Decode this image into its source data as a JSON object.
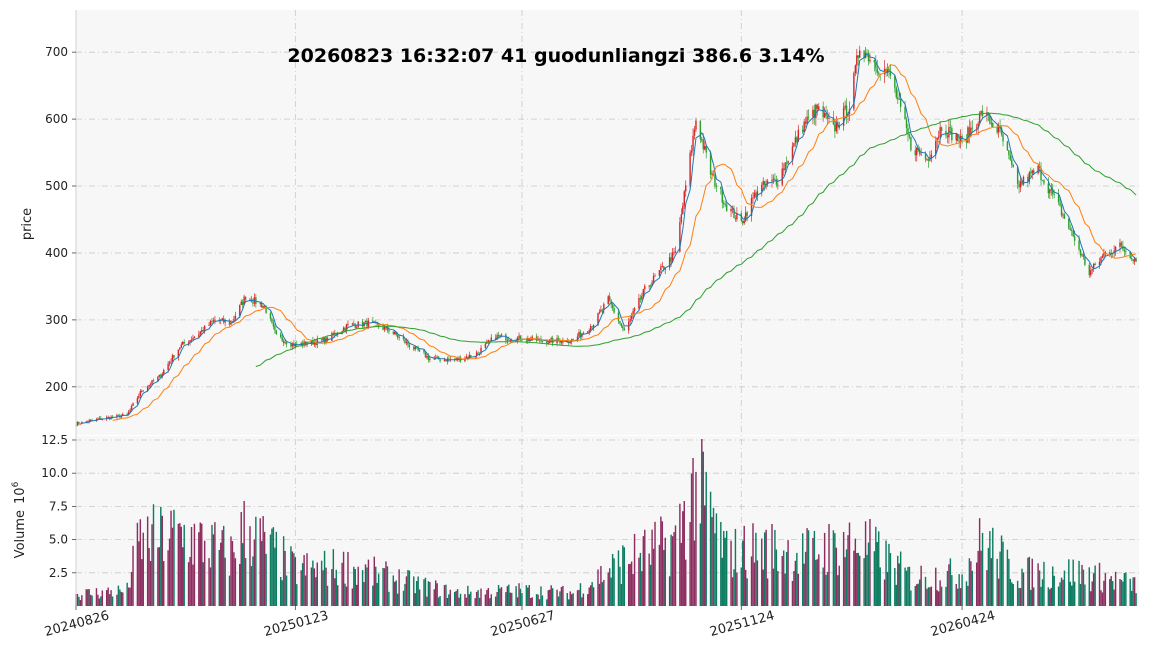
{
  "title": "20260823 16:32:07  41  guodunliangzi  386.6 3.14%",
  "colors": {
    "up": "#d62728",
    "down": "#2ca02c",
    "ma_short": "#1f77b4",
    "ma_mid": "#ff7f0e",
    "ma_long": "#2ca02c",
    "vol_up": "#8c2d60",
    "vol_down": "#0e7c61",
    "panel_bg": "#f7f7f7",
    "grid": "#c8c8c8"
  },
  "chart_data": [
    {
      "type": "candlestick",
      "panel": "price",
      "ylabel": "price",
      "ylim": [
        128,
        763
      ],
      "yticks": [
        200,
        300,
        400,
        500,
        600,
        700
      ],
      "grid": true,
      "x_ticks": [
        "20240826",
        "20250123",
        "20250627",
        "20251124",
        "20260424"
      ],
      "x_range": [
        "20240826",
        "20260823"
      ],
      "close_anchors": [
        {
          "d": "20240826",
          "c": 145
        },
        {
          "d": "20240912",
          "c": 152
        },
        {
          "d": "20240930",
          "c": 158
        },
        {
          "d": "20241010",
          "c": 195
        },
        {
          "d": "20241022",
          "c": 215
        },
        {
          "d": "20241105",
          "c": 260
        },
        {
          "d": "20241118",
          "c": 280
        },
        {
          "d": "20241129",
          "c": 300
        },
        {
          "d": "20241210",
          "c": 295
        },
        {
          "d": "20241220",
          "c": 335
        },
        {
          "d": "20250102",
          "c": 320
        },
        {
          "d": "20250110",
          "c": 275
        },
        {
          "d": "20250123",
          "c": 262
        },
        {
          "d": "20250213",
          "c": 270
        },
        {
          "d": "20250228",
          "c": 292
        },
        {
          "d": "20250314",
          "c": 295
        },
        {
          "d": "20250328",
          "c": 285
        },
        {
          "d": "20250411",
          "c": 262
        },
        {
          "d": "20250425",
          "c": 242
        },
        {
          "d": "20250512",
          "c": 240
        },
        {
          "d": "20250526",
          "c": 248
        },
        {
          "d": "20250609",
          "c": 275
        },
        {
          "d": "20250627",
          "c": 272
        },
        {
          "d": "20250715",
          "c": 268
        },
        {
          "d": "20250801",
          "c": 270
        },
        {
          "d": "20250815",
          "c": 295
        },
        {
          "d": "20250825",
          "c": 330
        },
        {
          "d": "20250905",
          "c": 282
        },
        {
          "d": "20250919",
          "c": 345
        },
        {
          "d": "20251010",
          "c": 400
        },
        {
          "d": "20251024",
          "c": 600
        },
        {
          "d": "20251103",
          "c": 520
        },
        {
          "d": "20251114",
          "c": 470
        },
        {
          "d": "20251124",
          "c": 445
        },
        {
          "d": "20251205",
          "c": 495
        },
        {
          "d": "20251219",
          "c": 510
        },
        {
          "d": "20260105",
          "c": 590
        },
        {
          "d": "20260115",
          "c": 615
        },
        {
          "d": "20260126",
          "c": 585
        },
        {
          "d": "20260206",
          "c": 620
        },
        {
          "d": "20260213",
          "c": 710
        },
        {
          "d": "20260225",
          "c": 680
        },
        {
          "d": "20260306",
          "c": 665
        },
        {
          "d": "20260320",
          "c": 560
        },
        {
          "d": "20260331",
          "c": 540
        },
        {
          "d": "20260410",
          "c": 590
        },
        {
          "d": "20260424",
          "c": 565
        },
        {
          "d": "20260508",
          "c": 610
        },
        {
          "d": "20260520",
          "c": 580
        },
        {
          "d": "20260601",
          "c": 500
        },
        {
          "d": "20260615",
          "c": 525
        },
        {
          "d": "20260629",
          "c": 470
        },
        {
          "d": "20260710",
          "c": 420
        },
        {
          "d": "20260720",
          "c": 370
        },
        {
          "d": "20260731",
          "c": 400
        },
        {
          "d": "20260810",
          "c": 410
        },
        {
          "d": "20260823",
          "c": 386.6
        }
      ],
      "moving_averages": [
        "short",
        "mid",
        "long"
      ]
    },
    {
      "type": "bar",
      "panel": "volume",
      "ylabel": "Volume",
      "ylabel_exponent_base": "10",
      "ylabel_exponent": "6",
      "ylim": [
        0,
        12.8
      ],
      "yticks": [
        "2.5",
        "5.0",
        "7.5",
        "10.0",
        "12.5"
      ],
      "grid": true,
      "volume_anchors": [
        {
          "d": "20240826",
          "v": 0.9
        },
        {
          "d": "20240930",
          "v": 1.2
        },
        {
          "d": "20241008",
          "v": 5.0
        },
        {
          "d": "20241105",
          "v": 5.5
        },
        {
          "d": "20241210",
          "v": 4.0
        },
        {
          "d": "20241220",
          "v": 6.0
        },
        {
          "d": "20250123",
          "v": 2.8
        },
        {
          "d": "20250228",
          "v": 3.0
        },
        {
          "d": "20250411",
          "v": 1.8
        },
        {
          "d": "20250512",
          "v": 1.0
        },
        {
          "d": "20250627",
          "v": 1.2
        },
        {
          "d": "20250801",
          "v": 1.0
        },
        {
          "d": "20250905",
          "v": 3.5
        },
        {
          "d": "20251010",
          "v": 5.0
        },
        {
          "d": "20251024",
          "v": 9.5
        },
        {
          "d": "20251114",
          "v": 4.0
        },
        {
          "d": "20251205",
          "v": 4.5
        },
        {
          "d": "20260105",
          "v": 4.0
        },
        {
          "d": "20260213",
          "v": 5.0
        },
        {
          "d": "20260320",
          "v": 2.2
        },
        {
          "d": "20260424",
          "v": 2.5
        },
        {
          "d": "20260508",
          "v": 5.0
        },
        {
          "d": "20260601",
          "v": 2.5
        },
        {
          "d": "20260710",
          "v": 2.6
        },
        {
          "d": "20260823",
          "v": 1.6
        }
      ]
    }
  ]
}
